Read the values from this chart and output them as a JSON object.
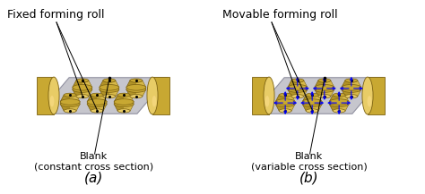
{
  "fig_width": 4.74,
  "fig_height": 2.17,
  "dpi": 100,
  "background_color": "#ffffff",
  "left_panel": {
    "title": "Fixed forming roll",
    "label": "(a)",
    "blank_text": "Blank\n(constant cross section)"
  },
  "right_panel": {
    "title": "Movable forming roll",
    "label": "(b)",
    "blank_text": "Blank\n(variable cross section)"
  },
  "title_fontsize": 9,
  "label_fontsize": 11,
  "blank_fontsize": 8,
  "text_color": "#000000",
  "gold_face": "#c8a832",
  "gold_dark": "#7a6010",
  "gold_light": "#e8cc66",
  "sheet_face": "#c0c0c8",
  "sheet_edge": "#888899"
}
